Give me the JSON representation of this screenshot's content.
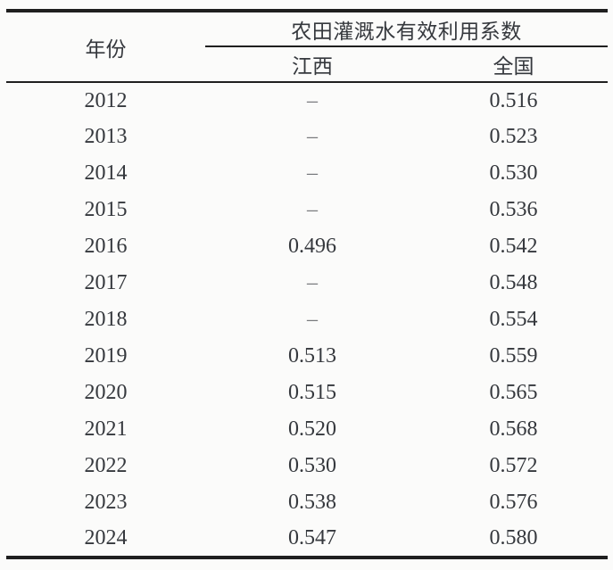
{
  "table": {
    "header": {
      "year_label": "年份",
      "span_label": "农田灌溉水有效利用系数",
      "col_jiangxi": "江西",
      "col_national": "全国"
    },
    "rows": [
      {
        "year": "2012",
        "jiangxi": "–",
        "national": "0.516"
      },
      {
        "year": "2013",
        "jiangxi": "–",
        "national": "0.523"
      },
      {
        "year": "2014",
        "jiangxi": "–",
        "national": "0.530"
      },
      {
        "year": "2015",
        "jiangxi": "–",
        "national": "0.536"
      },
      {
        "year": "2016",
        "jiangxi": "0.496",
        "national": "0.542"
      },
      {
        "year": "2017",
        "jiangxi": "–",
        "national": "0.548"
      },
      {
        "year": "2018",
        "jiangxi": "–",
        "national": "0.554"
      },
      {
        "year": "2019",
        "jiangxi": "0.513",
        "national": "0.559"
      },
      {
        "year": "2020",
        "jiangxi": "0.515",
        "national": "0.565"
      },
      {
        "year": "2021",
        "jiangxi": "0.520",
        "national": "0.568"
      },
      {
        "year": "2022",
        "jiangxi": "0.530",
        "national": "0.572"
      },
      {
        "year": "2023",
        "jiangxi": "0.538",
        "national": "0.576"
      },
      {
        "year": "2024",
        "jiangxi": "0.547",
        "national": "0.580"
      }
    ],
    "missing_value_symbol": "–"
  },
  "colors": {
    "background": "#fbfbfa",
    "text": "#35383d",
    "rule": "#1f1f1f",
    "dash": "#77797c"
  }
}
